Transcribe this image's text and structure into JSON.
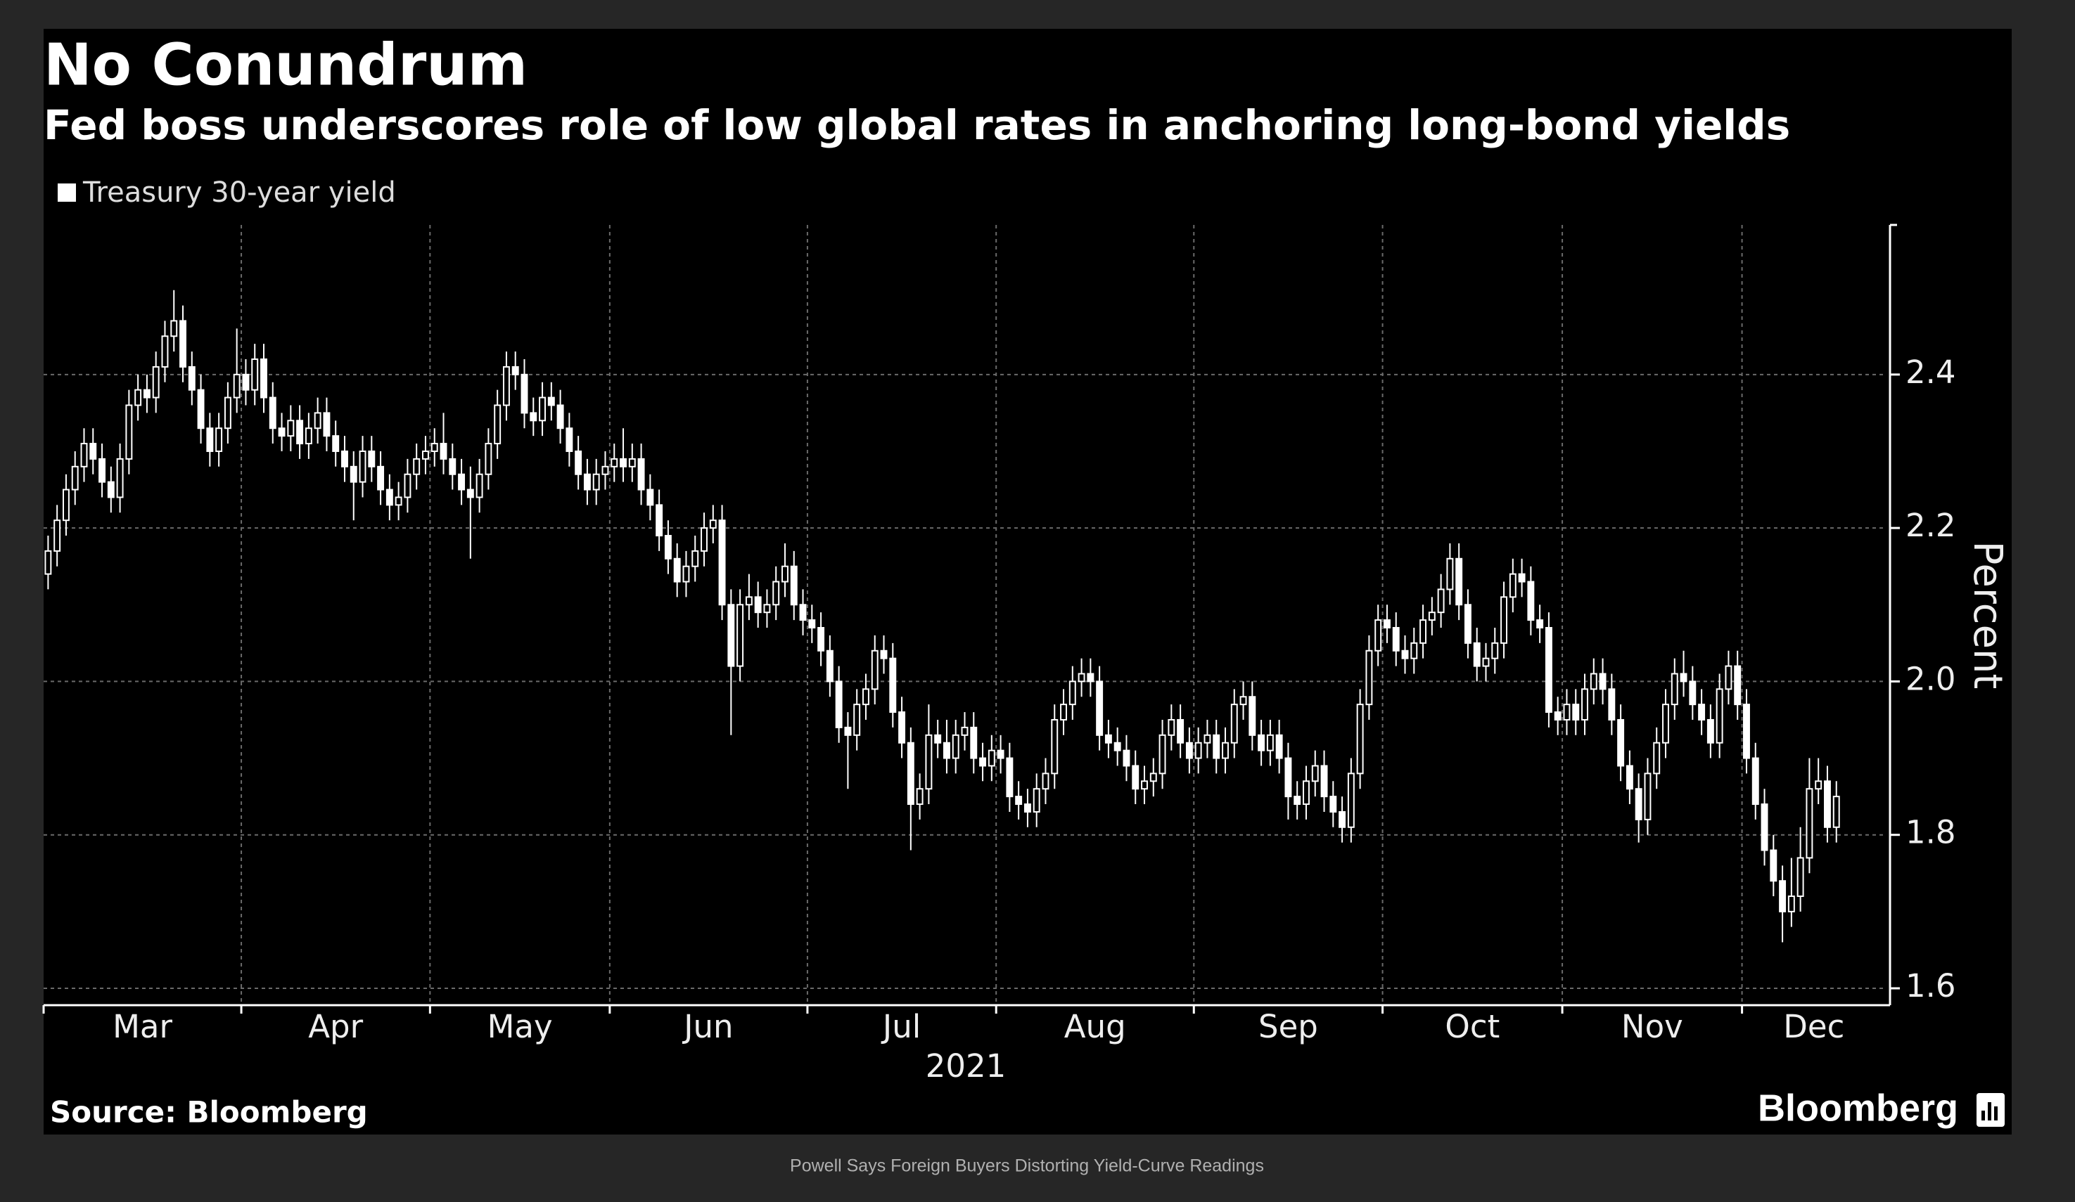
{
  "chart_data": {
    "type": "candlestick",
    "title": "No Conundrum",
    "subtitle": "Fed boss underscores role of low global rates in anchoring long-bond yields",
    "source": "Source: Bloomberg",
    "brand": "Bloomberg",
    "caption": "Powell  Says  Foreign  Buyers  Distorting  Yield-Curve  Readings",
    "x_label": "2021",
    "y_label": "Percent",
    "xlim": [
      0,
      205
    ],
    "xticks": [
      {
        "value": 0,
        "label": "Mar"
      },
      {
        "value": 22,
        "label": "Apr"
      },
      {
        "value": 43,
        "label": "May"
      },
      {
        "value": 63,
        "label": "Jun"
      },
      {
        "value": 85,
        "label": "Jul"
      },
      {
        "value": 106,
        "label": "Aug"
      },
      {
        "value": 128,
        "label": "Sep"
      },
      {
        "value": 149,
        "label": "Oct"
      },
      {
        "value": 169,
        "label": "Nov"
      },
      {
        "value": 189,
        "label": "Dec"
      }
    ],
    "ylim": [
      1.578,
      2.595
    ],
    "yticks": [
      1.6,
      1.8,
      {
        "value": 2,
        "label": "2.0"
      },
      2.2,
      2.4
    ],
    "grid": true,
    "series": [
      {
        "name": "Treasury 30-year yield",
        "color": "#ffffff",
        "open": [
          2.14,
          2.17,
          2.21,
          2.25,
          2.28,
          2.31,
          2.29,
          2.26,
          2.24,
          2.29,
          2.36,
          2.38,
          2.37,
          2.41,
          2.45,
          2.47,
          2.41,
          2.38,
          2.33,
          2.3,
          2.33,
          2.37,
          2.4,
          2.38,
          2.42,
          2.37,
          2.33,
          2.32,
          2.34,
          2.31,
          2.33,
          2.35,
          2.32,
          2.3,
          2.28,
          2.26,
          2.3,
          2.28,
          2.25,
          2.23,
          2.24,
          2.27,
          2.29,
          2.3,
          2.31,
          2.29,
          2.27,
          2.25,
          2.24,
          2.27,
          2.31,
          2.36,
          2.41,
          2.4,
          2.35,
          2.34,
          2.37,
          2.36,
          2.33,
          2.3,
          2.27,
          2.25,
          2.27,
          2.28,
          2.29,
          2.28,
          2.29,
          2.25,
          2.23,
          2.19,
          2.16,
          2.13,
          2.15,
          2.17,
          2.2,
          2.21,
          2.1,
          2.02,
          2.1,
          2.11,
          2.09,
          2.1,
          2.13,
          2.15,
          2.1,
          2.08,
          2.07,
          2.04,
          2.0,
          1.94,
          1.93,
          1.97,
          1.99,
          2.04,
          2.03,
          1.96,
          1.92,
          1.84,
          1.86,
          1.93,
          1.92,
          1.9,
          1.93,
          1.94,
          1.9,
          1.89,
          1.91,
          1.9,
          1.85,
          1.84,
          1.83,
          1.86,
          1.88,
          1.95,
          1.97,
          2.0,
          2.01,
          2.0,
          1.93,
          1.92,
          1.91,
          1.89,
          1.86,
          1.87,
          1.88,
          1.93,
          1.95,
          1.92,
          1.9,
          1.92,
          1.93,
          1.9,
          1.92,
          1.97,
          1.98,
          1.93,
          1.91,
          1.93,
          1.9,
          1.85,
          1.84,
          1.87,
          1.89,
          1.85,
          1.83,
          1.81,
          1.88,
          1.97,
          2.04,
          2.08,
          2.07,
          2.04,
          2.03,
          2.05,
          2.08,
          2.09,
          2.12,
          2.16,
          2.1,
          2.05,
          2.02,
          2.03,
          2.05,
          2.11,
          2.14,
          2.13,
          2.08,
          2.07,
          1.96,
          1.95,
          1.97,
          1.95,
          1.99,
          2.01,
          1.99,
          1.95,
          1.89,
          1.86,
          1.82,
          1.88,
          1.92,
          1.97,
          2.01,
          2.0,
          1.97,
          1.95,
          1.92,
          1.99,
          2.02,
          1.97,
          1.9,
          1.84,
          1.78,
          1.74,
          1.7,
          1.72,
          1.77,
          1.86,
          1.87,
          1.81
        ],
        "high": [
          2.19,
          2.23,
          2.27,
          2.3,
          2.33,
          2.33,
          2.31,
          2.28,
          2.31,
          2.38,
          2.4,
          2.4,
          2.43,
          2.47,
          2.51,
          2.49,
          2.43,
          2.4,
          2.35,
          2.35,
          2.39,
          2.46,
          2.42,
          2.44,
          2.44,
          2.39,
          2.35,
          2.36,
          2.36,
          2.35,
          2.37,
          2.37,
          2.34,
          2.32,
          2.3,
          2.32,
          2.32,
          2.3,
          2.27,
          2.26,
          2.29,
          2.31,
          2.32,
          2.33,
          2.35,
          2.31,
          2.29,
          2.28,
          2.29,
          2.33,
          2.38,
          2.43,
          2.43,
          2.42,
          2.37,
          2.39,
          2.39,
          2.38,
          2.35,
          2.32,
          2.29,
          2.29,
          2.3,
          2.31,
          2.33,
          2.31,
          2.31,
          2.27,
          2.25,
          2.21,
          2.18,
          2.17,
          2.19,
          2.22,
          2.23,
          2.23,
          2.12,
          2.12,
          2.14,
          2.13,
          2.12,
          2.15,
          2.18,
          2.17,
          2.12,
          2.1,
          2.09,
          2.06,
          2.02,
          1.96,
          1.99,
          2.01,
          2.06,
          2.06,
          2.05,
          1.98,
          1.94,
          1.88,
          1.97,
          1.95,
          1.95,
          1.95,
          1.96,
          1.96,
          1.92,
          1.93,
          1.93,
          1.92,
          1.87,
          1.86,
          1.88,
          1.9,
          1.97,
          1.99,
          2.02,
          2.03,
          2.03,
          2.02,
          1.95,
          1.94,
          1.93,
          1.91,
          1.89,
          1.9,
          1.95,
          1.97,
          1.97,
          1.94,
          1.94,
          1.95,
          1.95,
          1.94,
          1.99,
          2.0,
          2.0,
          1.95,
          1.95,
          1.95,
          1.92,
          1.87,
          1.89,
          1.91,
          1.91,
          1.87,
          1.85,
          1.9,
          1.99,
          2.06,
          2.1,
          2.1,
          2.09,
          2.06,
          2.07,
          2.1,
          2.11,
          2.14,
          2.18,
          2.18,
          2.12,
          2.07,
          2.05,
          2.07,
          2.13,
          2.16,
          2.16,
          2.15,
          2.1,
          2.09,
          1.98,
          1.99,
          1.99,
          2.01,
          2.03,
          2.03,
          2.01,
          1.97,
          1.91,
          1.88,
          1.9,
          1.94,
          1.99,
          2.03,
          2.04,
          2.02,
          1.99,
          1.97,
          2.01,
          2.04,
          2.04,
          1.99,
          1.92,
          1.86,
          1.8,
          1.76,
          1.77,
          1.81,
          1.9,
          1.9,
          1.89,
          1.87
        ],
        "low": [
          2.12,
          2.15,
          2.19,
          2.23,
          2.26,
          2.27,
          2.24,
          2.22,
          2.22,
          2.27,
          2.34,
          2.35,
          2.35,
          2.39,
          2.43,
          2.39,
          2.36,
          2.31,
          2.28,
          2.28,
          2.31,
          2.35,
          2.36,
          2.36,
          2.35,
          2.31,
          2.3,
          2.3,
          2.29,
          2.29,
          2.31,
          2.3,
          2.28,
          2.26,
          2.21,
          2.24,
          2.26,
          2.23,
          2.21,
          2.21,
          2.22,
          2.25,
          2.27,
          2.28,
          2.27,
          2.25,
          2.23,
          2.16,
          2.22,
          2.25,
          2.29,
          2.34,
          2.38,
          2.33,
          2.32,
          2.32,
          2.34,
          2.31,
          2.28,
          2.25,
          2.23,
          2.23,
          2.25,
          2.26,
          2.26,
          2.26,
          2.23,
          2.21,
          2.17,
          2.14,
          2.11,
          2.11,
          2.13,
          2.15,
          2.18,
          2.08,
          1.93,
          2.0,
          2.08,
          2.07,
          2.07,
          2.08,
          2.11,
          2.08,
          2.06,
          2.05,
          2.02,
          1.98,
          1.92,
          1.86,
          1.91,
          1.95,
          1.97,
          2.01,
          1.94,
          1.9,
          1.78,
          1.82,
          1.84,
          1.9,
          1.88,
          1.88,
          1.91,
          1.88,
          1.87,
          1.87,
          1.88,
          1.83,
          1.82,
          1.81,
          1.81,
          1.84,
          1.86,
          1.93,
          1.95,
          1.98,
          1.98,
          1.91,
          1.9,
          1.89,
          1.87,
          1.84,
          1.84,
          1.85,
          1.86,
          1.91,
          1.9,
          1.88,
          1.88,
          1.9,
          1.88,
          1.88,
          1.9,
          1.95,
          1.91,
          1.89,
          1.89,
          1.88,
          1.82,
          1.82,
          1.82,
          1.85,
          1.83,
          1.81,
          1.79,
          1.79,
          1.86,
          1.95,
          2.02,
          2.05,
          2.02,
          2.01,
          2.01,
          2.03,
          2.06,
          2.07,
          2.1,
          2.08,
          2.03,
          2.0,
          2.0,
          2.01,
          2.03,
          2.09,
          2.11,
          2.06,
          2.05,
          1.94,
          1.93,
          1.93,
          1.93,
          1.93,
          1.97,
          1.97,
          1.93,
          1.87,
          1.84,
          1.79,
          1.8,
          1.86,
          1.9,
          1.95,
          1.98,
          1.95,
          1.93,
          1.9,
          1.9,
          1.97,
          1.95,
          1.88,
          1.82,
          1.76,
          1.72,
          1.66,
          1.68,
          1.7,
          1.75,
          1.84,
          1.79,
          1.79
        ],
        "close": [
          2.17,
          2.21,
          2.25,
          2.28,
          2.31,
          2.29,
          2.26,
          2.24,
          2.29,
          2.36,
          2.38,
          2.37,
          2.41,
          2.45,
          2.47,
          2.41,
          2.38,
          2.33,
          2.3,
          2.33,
          2.37,
          2.4,
          2.38,
          2.42,
          2.37,
          2.33,
          2.32,
          2.34,
          2.31,
          2.33,
          2.35,
          2.32,
          2.3,
          2.28,
          2.26,
          2.3,
          2.28,
          2.25,
          2.23,
          2.24,
          2.27,
          2.29,
          2.3,
          2.31,
          2.29,
          2.27,
          2.25,
          2.24,
          2.27,
          2.31,
          2.36,
          2.41,
          2.4,
          2.35,
          2.34,
          2.37,
          2.36,
          2.33,
          2.3,
          2.27,
          2.25,
          2.27,
          2.28,
          2.29,
          2.28,
          2.29,
          2.25,
          2.23,
          2.19,
          2.16,
          2.13,
          2.15,
          2.17,
          2.2,
          2.21,
          2.1,
          2.02,
          2.1,
          2.11,
          2.09,
          2.1,
          2.13,
          2.15,
          2.1,
          2.08,
          2.07,
          2.04,
          2.0,
          1.94,
          1.93,
          1.97,
          1.99,
          2.04,
          2.03,
          1.96,
          1.92,
          1.84,
          1.86,
          1.93,
          1.92,
          1.9,
          1.93,
          1.94,
          1.9,
          1.89,
          1.91,
          1.9,
          1.85,
          1.84,
          1.83,
          1.86,
          1.88,
          1.95,
          1.97,
          2.0,
          2.01,
          2.0,
          1.93,
          1.92,
          1.91,
          1.89,
          1.86,
          1.87,
          1.88,
          1.93,
          1.95,
          1.92,
          1.9,
          1.92,
          1.93,
          1.9,
          1.92,
          1.97,
          1.98,
          1.93,
          1.91,
          1.93,
          1.9,
          1.85,
          1.84,
          1.87,
          1.89,
          1.85,
          1.83,
          1.81,
          1.88,
          1.97,
          2.04,
          2.08,
          2.07,
          2.04,
          2.03,
          2.05,
          2.08,
          2.09,
          2.12,
          2.16,
          2.1,
          2.05,
          2.02,
          2.03,
          2.05,
          2.11,
          2.14,
          2.13,
          2.08,
          2.07,
          1.96,
          1.95,
          1.97,
          1.95,
          1.99,
          2.01,
          1.99,
          1.95,
          1.89,
          1.86,
          1.82,
          1.88,
          1.92,
          1.97,
          2.01,
          2.0,
          1.97,
          1.95,
          1.92,
          1.99,
          2.02,
          1.97,
          1.9,
          1.84,
          1.78,
          1.74,
          1.7,
          1.72,
          1.77,
          1.86,
          1.87,
          1.81,
          1.85
        ]
      }
    ]
  }
}
